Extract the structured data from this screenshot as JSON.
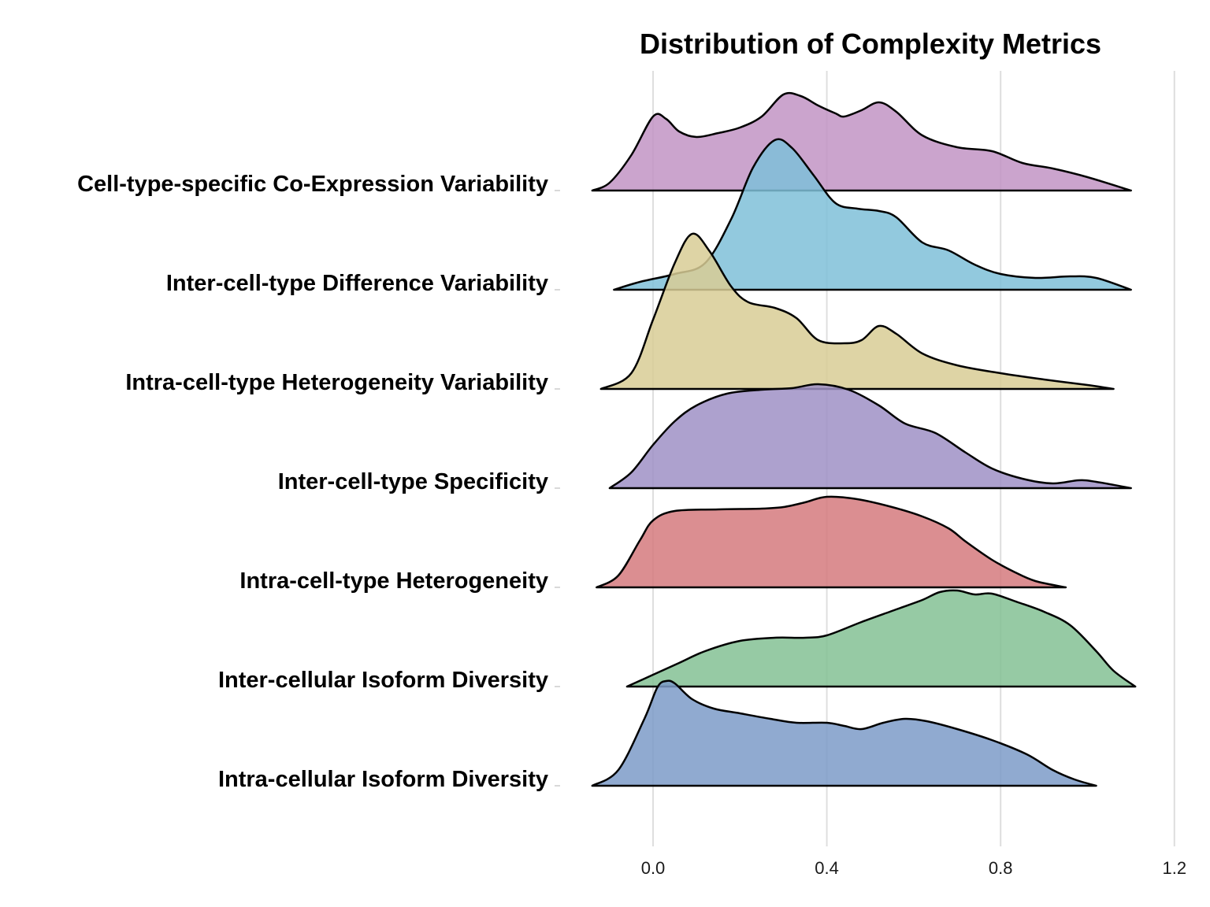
{
  "chart_data": {
    "type": "ridgeline",
    "title": "Distribution of Complexity Metrics",
    "xlabel": "",
    "ylabel": "",
    "xlim": [
      -0.15,
      1.2
    ],
    "x_ticks": [
      "0.0",
      "0.4",
      "0.8",
      "1.2"
    ],
    "x_tick_values": [
      0.0,
      0.4,
      0.8,
      1.2
    ],
    "grid": "vertical",
    "legend": "none",
    "series": [
      {
        "name": "Cell-type-specific Co-Expression Variability",
        "color": "#c294c4",
        "density": [
          [
            -0.14,
            0.0
          ],
          [
            -0.1,
            0.1
          ],
          [
            -0.05,
            0.45
          ],
          [
            0.0,
            0.94
          ],
          [
            0.03,
            0.91
          ],
          [
            0.06,
            0.75
          ],
          [
            0.1,
            0.68
          ],
          [
            0.15,
            0.73
          ],
          [
            0.2,
            0.8
          ],
          [
            0.25,
            0.94
          ],
          [
            0.3,
            1.22
          ],
          [
            0.34,
            1.2
          ],
          [
            0.38,
            1.08
          ],
          [
            0.42,
            0.98
          ],
          [
            0.44,
            0.94
          ],
          [
            0.48,
            1.02
          ],
          [
            0.52,
            1.12
          ],
          [
            0.56,
            1.0
          ],
          [
            0.62,
            0.7
          ],
          [
            0.7,
            0.55
          ],
          [
            0.78,
            0.5
          ],
          [
            0.85,
            0.35
          ],
          [
            0.92,
            0.28
          ],
          [
            1.0,
            0.17
          ],
          [
            1.1,
            0.0
          ]
        ]
      },
      {
        "name": "Inter-cell-type Difference Variability",
        "color": "#7fc0d8",
        "density": [
          [
            -0.09,
            0.0
          ],
          [
            -0.03,
            0.1
          ],
          [
            0.05,
            0.2
          ],
          [
            0.12,
            0.34
          ],
          [
            0.18,
            0.9
          ],
          [
            0.23,
            1.55
          ],
          [
            0.28,
            1.9
          ],
          [
            0.32,
            1.8
          ],
          [
            0.37,
            1.45
          ],
          [
            0.42,
            1.1
          ],
          [
            0.47,
            1.03
          ],
          [
            0.52,
            1.0
          ],
          [
            0.56,
            0.92
          ],
          [
            0.62,
            0.6
          ],
          [
            0.68,
            0.5
          ],
          [
            0.74,
            0.32
          ],
          [
            0.8,
            0.2
          ],
          [
            0.88,
            0.15
          ],
          [
            0.96,
            0.17
          ],
          [
            1.02,
            0.15
          ],
          [
            1.1,
            0.0
          ]
        ]
      },
      {
        "name": "Intra-cell-type Heterogeneity Variability",
        "color": "#d8cc95",
        "density": [
          [
            -0.12,
            0.0
          ],
          [
            -0.05,
            0.2
          ],
          [
            0.0,
            0.88
          ],
          [
            0.05,
            1.6
          ],
          [
            0.09,
            1.97
          ],
          [
            0.13,
            1.75
          ],
          [
            0.18,
            1.3
          ],
          [
            0.22,
            1.1
          ],
          [
            0.28,
            1.03
          ],
          [
            0.33,
            0.9
          ],
          [
            0.38,
            0.62
          ],
          [
            0.44,
            0.58
          ],
          [
            0.48,
            0.62
          ],
          [
            0.52,
            0.8
          ],
          [
            0.56,
            0.7
          ],
          [
            0.62,
            0.45
          ],
          [
            0.7,
            0.3
          ],
          [
            0.8,
            0.2
          ],
          [
            0.9,
            0.12
          ],
          [
            1.0,
            0.05
          ],
          [
            1.06,
            0.0
          ]
        ]
      },
      {
        "name": "Inter-cell-type Specificity",
        "color": "#9f90c6",
        "density": [
          [
            -0.1,
            0.0
          ],
          [
            -0.05,
            0.2
          ],
          [
            0.0,
            0.55
          ],
          [
            0.05,
            0.85
          ],
          [
            0.1,
            1.05
          ],
          [
            0.17,
            1.2
          ],
          [
            0.25,
            1.25
          ],
          [
            0.32,
            1.27
          ],
          [
            0.38,
            1.32
          ],
          [
            0.45,
            1.25
          ],
          [
            0.52,
            1.05
          ],
          [
            0.58,
            0.82
          ],
          [
            0.65,
            0.7
          ],
          [
            0.72,
            0.45
          ],
          [
            0.78,
            0.25
          ],
          [
            0.85,
            0.12
          ],
          [
            0.92,
            0.06
          ],
          [
            0.98,
            0.1
          ],
          [
            1.02,
            0.08
          ],
          [
            1.1,
            0.0
          ]
        ]
      },
      {
        "name": "Intra-cell-type Heterogeneity",
        "color": "#d57a7e",
        "density": [
          [
            -0.13,
            0.0
          ],
          [
            -0.08,
            0.15
          ],
          [
            -0.03,
            0.6
          ],
          [
            0.0,
            0.85
          ],
          [
            0.05,
            0.97
          ],
          [
            0.15,
            0.99
          ],
          [
            0.25,
            1.0
          ],
          [
            0.3,
            1.02
          ],
          [
            0.35,
            1.08
          ],
          [
            0.4,
            1.15
          ],
          [
            0.47,
            1.12
          ],
          [
            0.55,
            1.02
          ],
          [
            0.62,
            0.9
          ],
          [
            0.68,
            0.75
          ],
          [
            0.72,
            0.58
          ],
          [
            0.78,
            0.35
          ],
          [
            0.83,
            0.2
          ],
          [
            0.88,
            0.08
          ],
          [
            0.95,
            0.0
          ]
        ]
      },
      {
        "name": "Inter-cellular Isoform Diversity",
        "color": "#84c194",
        "density": [
          [
            -0.06,
            0.0
          ],
          [
            0.0,
            0.15
          ],
          [
            0.06,
            0.3
          ],
          [
            0.12,
            0.45
          ],
          [
            0.2,
            0.58
          ],
          [
            0.28,
            0.62
          ],
          [
            0.35,
            0.62
          ],
          [
            0.4,
            0.65
          ],
          [
            0.48,
            0.82
          ],
          [
            0.56,
            0.98
          ],
          [
            0.62,
            1.1
          ],
          [
            0.66,
            1.2
          ],
          [
            0.7,
            1.22
          ],
          [
            0.74,
            1.17
          ],
          [
            0.78,
            1.18
          ],
          [
            0.84,
            1.07
          ],
          [
            0.9,
            0.95
          ],
          [
            0.96,
            0.78
          ],
          [
            1.02,
            0.45
          ],
          [
            1.06,
            0.2
          ],
          [
            1.11,
            0.0
          ]
        ]
      },
      {
        "name": "Intra-cellular Isoform Diversity",
        "color": "#7c9bc8",
        "density": [
          [
            -0.14,
            0.0
          ],
          [
            -0.08,
            0.2
          ],
          [
            -0.02,
            0.85
          ],
          [
            0.01,
            1.25
          ],
          [
            0.03,
            1.33
          ],
          [
            0.05,
            1.3
          ],
          [
            0.09,
            1.1
          ],
          [
            0.14,
            0.98
          ],
          [
            0.2,
            0.92
          ],
          [
            0.27,
            0.85
          ],
          [
            0.33,
            0.8
          ],
          [
            0.4,
            0.8
          ],
          [
            0.44,
            0.76
          ],
          [
            0.48,
            0.72
          ],
          [
            0.53,
            0.8
          ],
          [
            0.58,
            0.85
          ],
          [
            0.63,
            0.82
          ],
          [
            0.7,
            0.72
          ],
          [
            0.78,
            0.58
          ],
          [
            0.86,
            0.4
          ],
          [
            0.92,
            0.2
          ],
          [
            0.97,
            0.08
          ],
          [
            1.02,
            0.0
          ]
        ]
      }
    ]
  }
}
